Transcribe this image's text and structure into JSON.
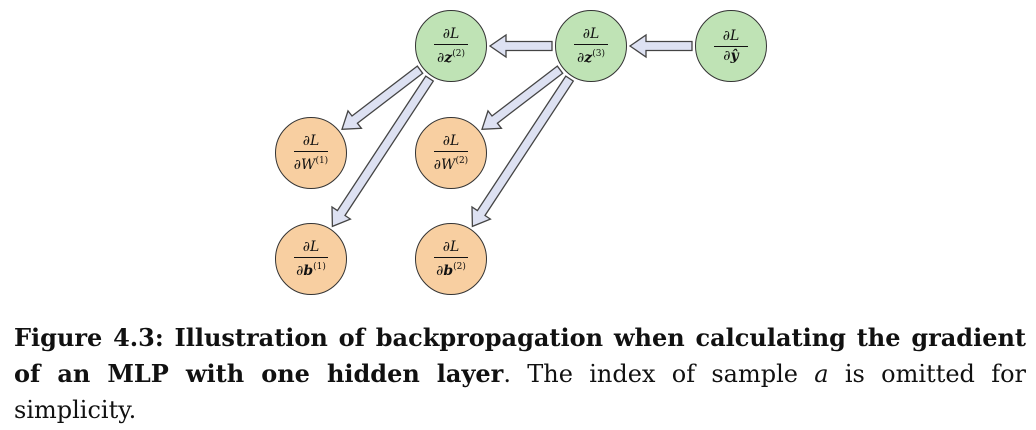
{
  "nodes": [
    {
      "id": "dl-dz2",
      "color": "green",
      "num": "∂L",
      "den_prefix": "∂",
      "den_var": "z",
      "den_bold": true,
      "den_sup": "(2)"
    },
    {
      "id": "dl-dz3",
      "color": "green",
      "num": "∂L",
      "den_prefix": "∂",
      "den_var": "z",
      "den_bold": true,
      "den_sup": "(3)"
    },
    {
      "id": "dl-dyhat",
      "color": "green",
      "num": "∂L",
      "den_prefix": "∂",
      "den_var": "ŷ",
      "den_bold": true,
      "den_sup": ""
    },
    {
      "id": "dl-dw1",
      "color": "orange",
      "num": "∂L",
      "den_prefix": "∂",
      "den_var": "W",
      "den_bold": false,
      "den_sup": "(1)"
    },
    {
      "id": "dl-dw2",
      "color": "orange",
      "num": "∂L",
      "den_prefix": "∂",
      "den_var": "W",
      "den_bold": false,
      "den_sup": "(2)"
    },
    {
      "id": "dl-db1",
      "color": "orange",
      "num": "∂L",
      "den_prefix": "∂",
      "den_var": "b",
      "den_bold": true,
      "den_sup": "(1)"
    },
    {
      "id": "dl-db2",
      "color": "orange",
      "num": "∂L",
      "den_prefix": "∂",
      "den_var": "b",
      "den_bold": true,
      "den_sup": "(2)"
    }
  ],
  "edges": [
    {
      "from": "dl-dyhat",
      "to": "dl-dz3"
    },
    {
      "from": "dl-dz3",
      "to": "dl-dz2"
    },
    {
      "from": "dl-dz3",
      "to": "dl-dw2"
    },
    {
      "from": "dl-dz3",
      "to": "dl-db2"
    },
    {
      "from": "dl-dz2",
      "to": "dl-dw1"
    },
    {
      "from": "dl-dz2",
      "to": "dl-db1"
    }
  ],
  "colors": {
    "green": "#bfe3b5",
    "orange": "#f8cfa1",
    "arrow_fill": "#dde1f2",
    "arrow_stroke": "#444444"
  },
  "caption": {
    "bold": "Figure 4.3: Illustration of backpropagation when calculating the gradient of an MLP with one hidden layer",
    "part1": ". The index of sample ",
    "italic": "a",
    "part2": " is omitted for simplicity."
  }
}
